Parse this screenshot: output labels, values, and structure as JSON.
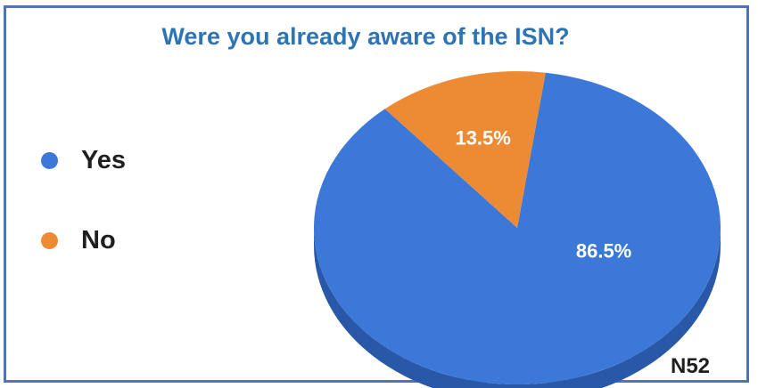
{
  "chart_data": {
    "type": "pie",
    "title": "Were you already aware of the ISN?",
    "categories": [
      "Yes",
      "No"
    ],
    "values": [
      86.5,
      13.5
    ],
    "data_labels": [
      "86.5%",
      "13.5%"
    ],
    "colors": [
      "#3c78d8",
      "#ed8b35"
    ],
    "side_colors": [
      "#2a58a8",
      "#b8692a"
    ],
    "legend_position": "left",
    "three_d": true,
    "annotation": "N52"
  }
}
